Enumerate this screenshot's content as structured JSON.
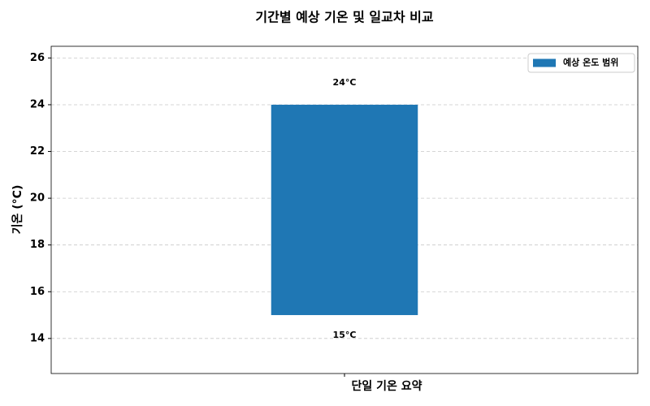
{
  "chart_data": {
    "type": "floating-bar",
    "title": "기간별 예상 기온 및 일교차 비교",
    "xlabel": "단일 기온 요약",
    "ylabel": "기온 (°C)",
    "categories": [
      "단일 기온 요약"
    ],
    "series": [
      {
        "name": "예상 온도 범위",
        "color": "#1f77b4",
        "low": [
          15
        ],
        "high": [
          24
        ],
        "low_labels": [
          "15°C"
        ],
        "high_labels": [
          "24°C"
        ]
      }
    ],
    "ylim": [
      12.5,
      26.5
    ],
    "yticks": [
      14,
      16,
      18,
      20,
      22,
      24,
      26
    ],
    "grid": true,
    "legend": "upper-right"
  }
}
